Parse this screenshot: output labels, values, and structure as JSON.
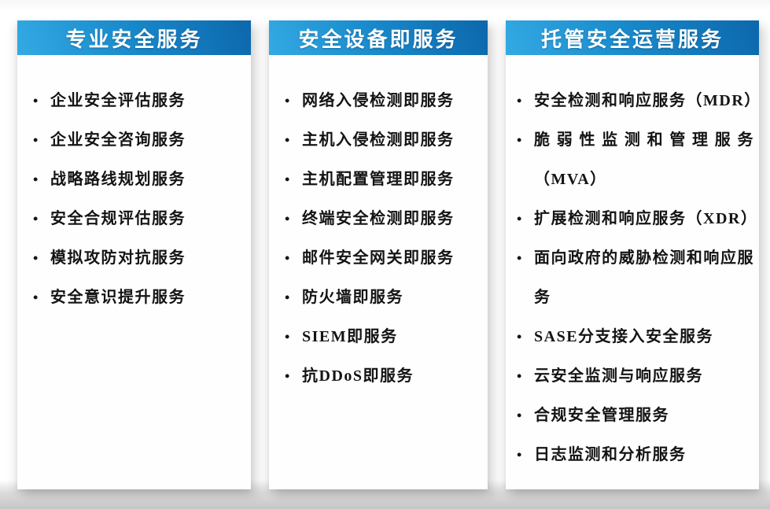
{
  "page": {
    "background_top": "#ffffff",
    "background_bottom_band": "#c6c6c6"
  },
  "colors": {
    "header_gradient_light": "#33aae4",
    "header_gradient_dark": "#0d67ac",
    "header_text": "#ffffff",
    "item_text": "#141414",
    "card_background": "#fefefe"
  },
  "bullet_glyph": "•",
  "columns": [
    {
      "id": "professional-security-services",
      "title": "专业安全服务",
      "items": [
        "企业安全评估服务",
        "企业安全咨询服务",
        "战略路线规划服务",
        "安全合规评估服务",
        "模拟攻防对抗服务",
        "安全意识提升服务"
      ]
    },
    {
      "id": "security-equipment-as-a-service",
      "title": "安全设备即服务",
      "items": [
        "网络入侵检测即服务",
        "主机入侵检测即服务",
        "主机配置管理即服务",
        "终端安全检测即服务",
        "邮件安全网关即服务",
        "防火墙即服务",
        "SIEM即服务",
        "抗DDoS即服务"
      ]
    },
    {
      "id": "managed-security-operations-services",
      "title": "托管安全运营服务",
      "items": [
        "安全检测和响应服务（MDR）",
        "脆弱性监测和管理服务（MVA）",
        "扩展检测和响应服务（XDR）",
        "面向政府的威胁检测和响应服务",
        "SASE分支接入安全服务",
        "云安全监测与响应服务",
        "合规安全管理服务",
        "日志监测和分析服务"
      ]
    }
  ]
}
